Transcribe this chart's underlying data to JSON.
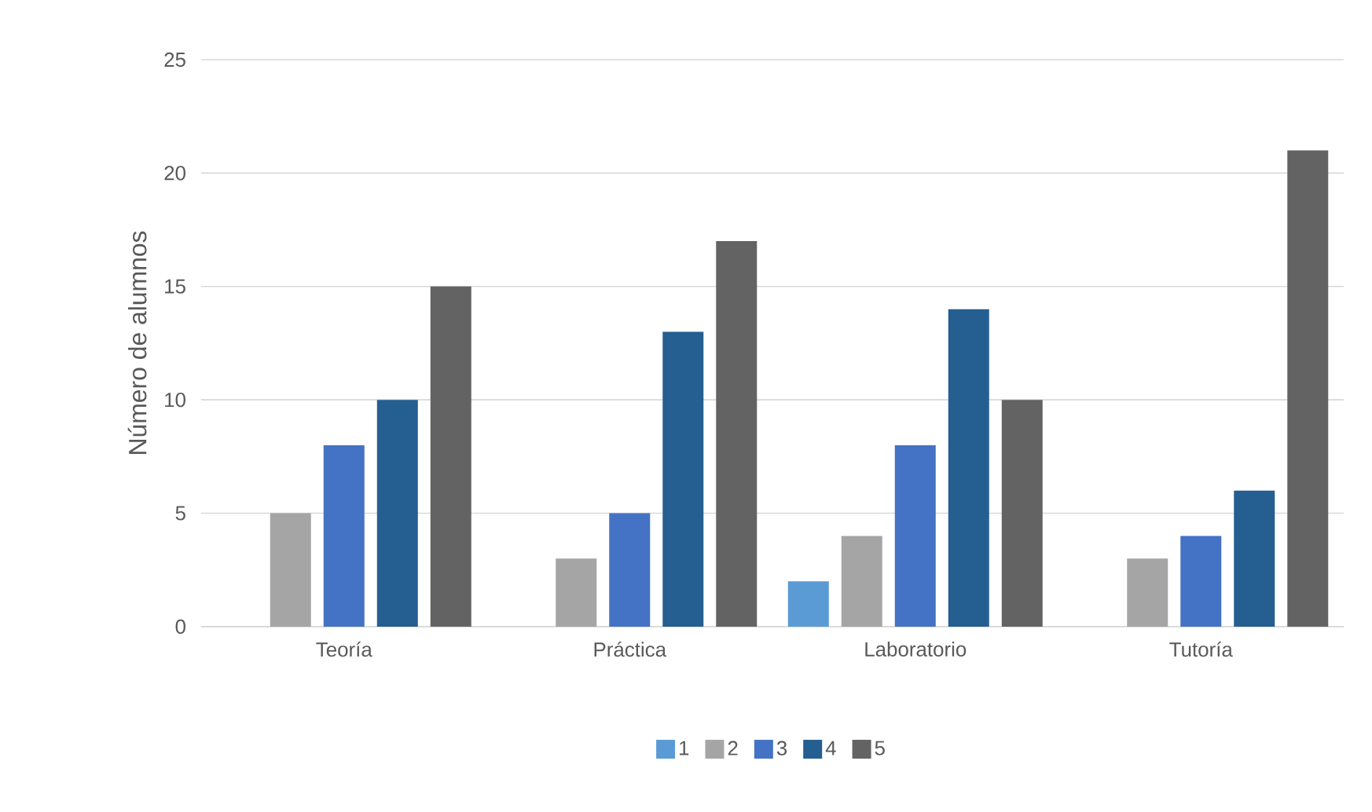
{
  "chart_data": {
    "type": "bar",
    "ylabel": "Número de alumnos",
    "categories": [
      "Teoría",
      "Práctica",
      "Laboratorio",
      "Tutoría"
    ],
    "series": [
      {
        "name": "1",
        "color": "#5b9bd5",
        "values": [
          0,
          0,
          2,
          0
        ]
      },
      {
        "name": "2",
        "color": "#a5a5a5",
        "values": [
          5,
          3,
          4,
          3
        ]
      },
      {
        "name": "3",
        "color": "#4472c4",
        "values": [
          8,
          5,
          8,
          4
        ]
      },
      {
        "name": "4",
        "color": "#255e91",
        "values": [
          10,
          13,
          14,
          6
        ]
      },
      {
        "name": "5",
        "color": "#636363",
        "values": [
          15,
          17,
          10,
          21
        ]
      }
    ],
    "ylim": [
      0,
      25
    ],
    "yticks": [
      0,
      5,
      10,
      15,
      20,
      25
    ],
    "grid": "y",
    "legend": "bottom"
  }
}
